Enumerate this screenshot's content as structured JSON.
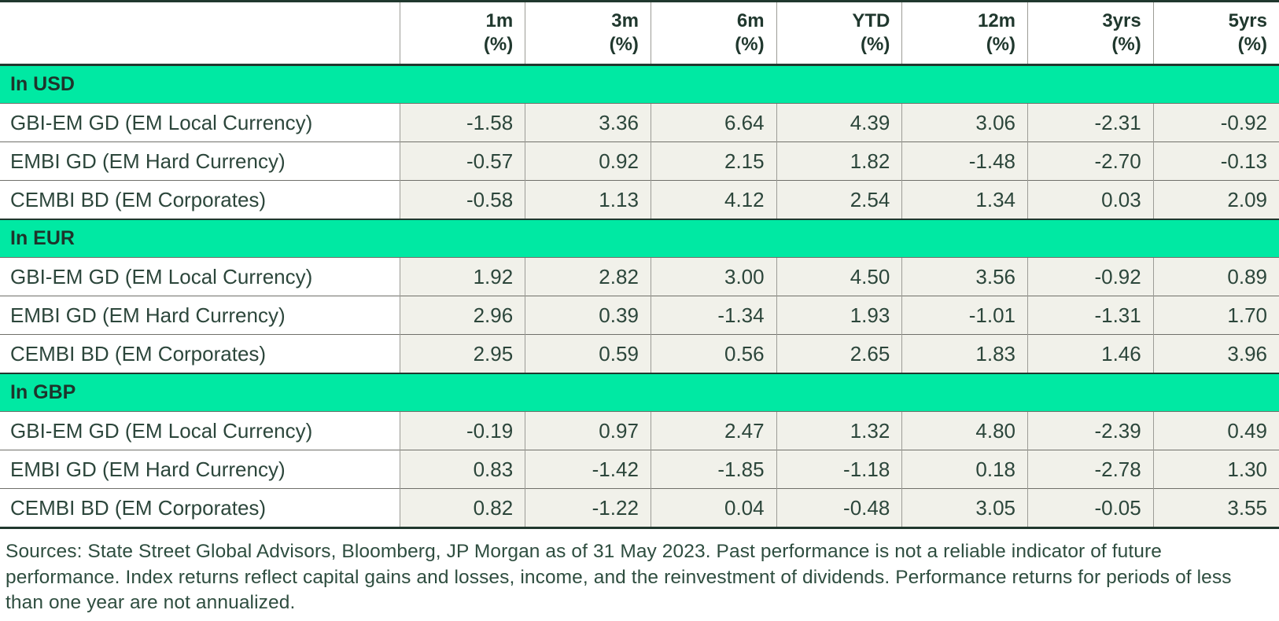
{
  "colors": {
    "section_green": "#00E9A3",
    "cell_background": "#F1F1EA",
    "text_dark_green": "#2C463B",
    "border_dark": "#20382E",
    "border_gray": "#9C9C96"
  },
  "table": {
    "columns": [
      {
        "period": "1m",
        "unit": "(%)"
      },
      {
        "period": "3m",
        "unit": "(%)"
      },
      {
        "period": "6m",
        "unit": "(%)"
      },
      {
        "period": "YTD",
        "unit": "(%)"
      },
      {
        "period": "12m",
        "unit": "(%)"
      },
      {
        "period": "3yrs",
        "unit": "(%)"
      },
      {
        "period": "5yrs",
        "unit": "(%)"
      }
    ],
    "sections": [
      {
        "label": "In USD",
        "rows": [
          {
            "name": "GBI-EM GD (EM Local Currency)",
            "values": [
              "-1.58",
              "3.36",
              "6.64",
              "4.39",
              "3.06",
              "-2.31",
              "-0.92"
            ]
          },
          {
            "name": "EMBI GD (EM Hard Currency)",
            "values": [
              "-0.57",
              "0.92",
              "2.15",
              "1.82",
              "-1.48",
              "-2.70",
              "-0.13"
            ]
          },
          {
            "name": "CEMBI BD (EM Corporates)",
            "values": [
              "-0.58",
              "1.13",
              "4.12",
              "2.54",
              "1.34",
              "0.03",
              "2.09"
            ]
          }
        ]
      },
      {
        "label": "In EUR",
        "rows": [
          {
            "name": "GBI-EM GD (EM Local Currency)",
            "values": [
              "1.92",
              "2.82",
              "3.00",
              "4.50",
              "3.56",
              "-0.92",
              "0.89"
            ]
          },
          {
            "name": "EMBI GD (EM Hard Currency)",
            "values": [
              "2.96",
              "0.39",
              "-1.34",
              "1.93",
              "-1.01",
              "-1.31",
              "1.70"
            ]
          },
          {
            "name": "CEMBI BD (EM Corporates)",
            "values": [
              "2.95",
              "0.59",
              "0.56",
              "2.65",
              "1.83",
              "1.46",
              "3.96"
            ]
          }
        ]
      },
      {
        "label": "In GBP",
        "rows": [
          {
            "name": "GBI-EM GD (EM Local Currency)",
            "values": [
              "-0.19",
              "0.97",
              "2.47",
              "1.32",
              "4.80",
              "-2.39",
              "0.49"
            ]
          },
          {
            "name": "EMBI GD (EM Hard Currency)",
            "values": [
              "0.83",
              "-1.42",
              "-1.85",
              "-1.18",
              "0.18",
              "-2.78",
              "1.30"
            ]
          },
          {
            "name": "CEMBI BD (EM Corporates)",
            "values": [
              "0.82",
              "-1.22",
              "0.04",
              "-0.48",
              "3.05",
              "-0.05",
              "3.55"
            ]
          }
        ]
      }
    ]
  },
  "footnote": "Sources: State Street Global Advisors, Bloomberg, JP Morgan as of 31 May 2023. Past performance is not a reliable indicator of future performance. Index returns reflect capital gains and losses, income, and the reinvestment of dividends. Performance returns for periods of less than one year are not annualized."
}
